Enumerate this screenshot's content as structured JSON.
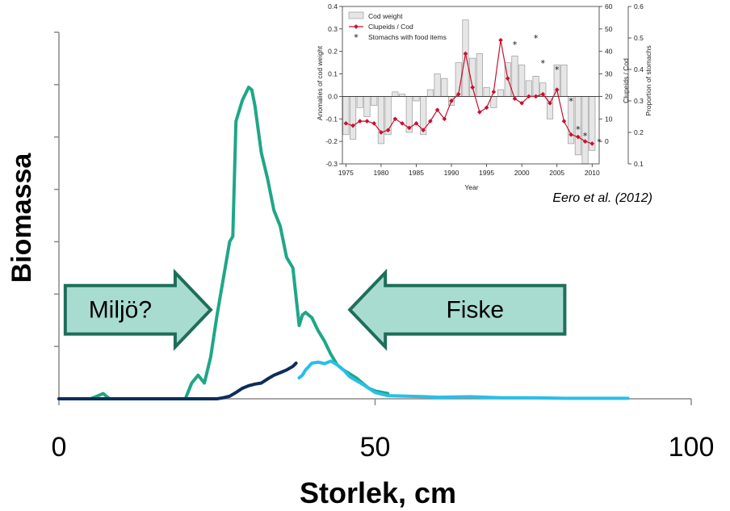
{
  "chart_data": [
    {
      "type": "line",
      "xlabel": "Storlek, cm",
      "ylabel": "Biomassa",
      "xlim": [
        0,
        100
      ],
      "x_ticks": [
        {
          "value": 0,
          "label": "0"
        },
        {
          "value": 50,
          "label": "50"
        },
        {
          "value": 100,
          "label": "100"
        }
      ],
      "ylim": [
        0,
        7
      ],
      "y_tick_count": 7,
      "grid": false,
      "colors": {
        "green": "#1fa688",
        "dark": "#0d2d5a",
        "cyan": "#28bfe8",
        "arrow_fill": "#a8dcd1",
        "arrow_stroke": "#1e6e5a"
      },
      "series": [
        {
          "color": "green",
          "x": [
            0,
            5,
            6,
            7,
            8,
            10,
            13,
            15,
            17,
            18,
            19,
            20,
            21,
            22,
            23,
            24,
            25,
            26,
            27,
            27.5,
            28,
            29,
            30,
            30.5,
            31,
            32,
            33,
            34,
            35,
            36,
            37,
            37.5,
            38,
            38.5,
            39,
            40,
            41,
            42,
            43,
            44,
            45,
            47,
            49,
            50,
            52
          ],
          "y": [
            0,
            0,
            0.05,
            0.1,
            0,
            0,
            0,
            0,
            0,
            0,
            0,
            0,
            0.3,
            0.45,
            0.3,
            0.8,
            1.6,
            2.3,
            3.0,
            3.1,
            5.3,
            5.7,
            5.95,
            5.9,
            5.6,
            4.7,
            4.2,
            3.6,
            3.3,
            2.7,
            2.5,
            1.95,
            1.4,
            1.6,
            1.65,
            1.55,
            1.3,
            1.1,
            0.85,
            0.65,
            0.55,
            0.4,
            0.2,
            0.15,
            0.1
          ]
        },
        {
          "color": "dark",
          "x": [
            0,
            10,
            20,
            25,
            26,
            27,
            28,
            29,
            30,
            31,
            32,
            33,
            34,
            35,
            36,
            37,
            37.5
          ],
          "y": [
            0,
            0,
            0,
            0,
            0.02,
            0.05,
            0.12,
            0.2,
            0.25,
            0.28,
            0.3,
            0.38,
            0.45,
            0.5,
            0.55,
            0.62,
            0.68
          ]
        },
        {
          "color": "cyan",
          "x": [
            38,
            38.5,
            39,
            40,
            41,
            42,
            43,
            44,
            45,
            46,
            47,
            48,
            49,
            50,
            52,
            55,
            58,
            60,
            65,
            70,
            75,
            80,
            85,
            90
          ],
          "y": [
            0.4,
            0.45,
            0.55,
            0.68,
            0.7,
            0.67,
            0.72,
            0.65,
            0.55,
            0.42,
            0.35,
            0.28,
            0.2,
            0.12,
            0.06,
            0.05,
            0.04,
            0.03,
            0.04,
            0.02,
            0.02,
            0.01,
            0.01,
            0.01
          ]
        }
      ],
      "annotations": [
        {
          "text": "Miljö?",
          "x_range": [
            1,
            24
          ],
          "y": 1.7,
          "direction": "right"
        },
        {
          "text": "Fiske",
          "x_range": [
            46,
            80
          ],
          "y": 1.7,
          "direction": "left"
        }
      ]
    },
    {
      "type": "bar",
      "title": "",
      "xlabel": "Year",
      "ylabel": "Anomalies of cod weight",
      "y2label": "Clupeids / Cod",
      "y3label": "Proportion of stomachs",
      "xlim": [
        1974.5,
        2011
      ],
      "ylim": [
        -0.3,
        0.4
      ],
      "y2lim": [
        -10,
        60
      ],
      "y3lim": [
        0.1,
        0.6
      ],
      "x_ticks": [
        1975,
        1980,
        1985,
        1990,
        1995,
        2000,
        2005,
        2010
      ],
      "y_ticks": [
        -0.3,
        -0.2,
        -0.1,
        0,
        0.1,
        0.2,
        0.3,
        0.4
      ],
      "y2_ticks": [
        0,
        10,
        20,
        30,
        40,
        50,
        60
      ],
      "y3_ticks": [
        0.1,
        0.2,
        0.3,
        0.4,
        0.5,
        0.6
      ],
      "legend": [
        "Cod weight",
        "Clupeids / Cod",
        "Stomachs with food items"
      ],
      "legend_position": "top-left",
      "credit": "Eero et al. (2012)",
      "bars": {
        "years": [
          1975,
          1976,
          1977,
          1978,
          1979,
          1980,
          1981,
          1982,
          1983,
          1984,
          1985,
          1986,
          1987,
          1988,
          1989,
          1990,
          1991,
          1992,
          1993,
          1994,
          1995,
          1996,
          1997,
          1998,
          1999,
          2000,
          2001,
          2002,
          2003,
          2004,
          2005,
          2006,
          2007,
          2008,
          2009,
          2010
        ],
        "values": [
          -0.17,
          -0.19,
          -0.05,
          -0.09,
          -0.04,
          -0.21,
          -0.17,
          0.02,
          0.01,
          -0.16,
          -0.02,
          -0.17,
          0.03,
          0.1,
          0.08,
          -0.04,
          0.15,
          0.34,
          0.17,
          0.19,
          0.04,
          -0.05,
          0.03,
          0.15,
          0.18,
          0.14,
          0.07,
          0.09,
          0.06,
          -0.1,
          0.14,
          0.14,
          -0.21,
          -0.26,
          -0.3,
          -0.24
        ]
      },
      "line": {
        "years": [
          1975,
          1976,
          1977,
          1978,
          1979,
          1980,
          1981,
          1982,
          1983,
          1984,
          1985,
          1986,
          1987,
          1988,
          1989,
          1990,
          1991,
          1992,
          1993,
          1994,
          1995,
          1996,
          1997,
          1998,
          1999,
          2000,
          2001,
          2002,
          2003,
          2004,
          2005,
          2006,
          2007,
          2008,
          2009,
          2010
        ],
        "values": [
          8,
          7,
          9,
          9,
          8,
          4,
          5,
          10,
          8,
          6,
          8,
          5,
          9,
          14,
          10,
          18,
          21,
          39,
          24,
          13,
          15,
          22,
          45,
          28,
          19,
          17,
          20,
          20,
          21,
          17,
          23,
          9,
          3,
          2,
          0,
          -1
        ]
      },
      "stars": {
        "years": [
          1999,
          2002,
          2003,
          2005,
          2007,
          2008,
          2009,
          2011
        ],
        "values": [
          0.48,
          0.5,
          0.42,
          0.4,
          0.3,
          0.21,
          0.19,
          0.17
        ]
      }
    }
  ]
}
